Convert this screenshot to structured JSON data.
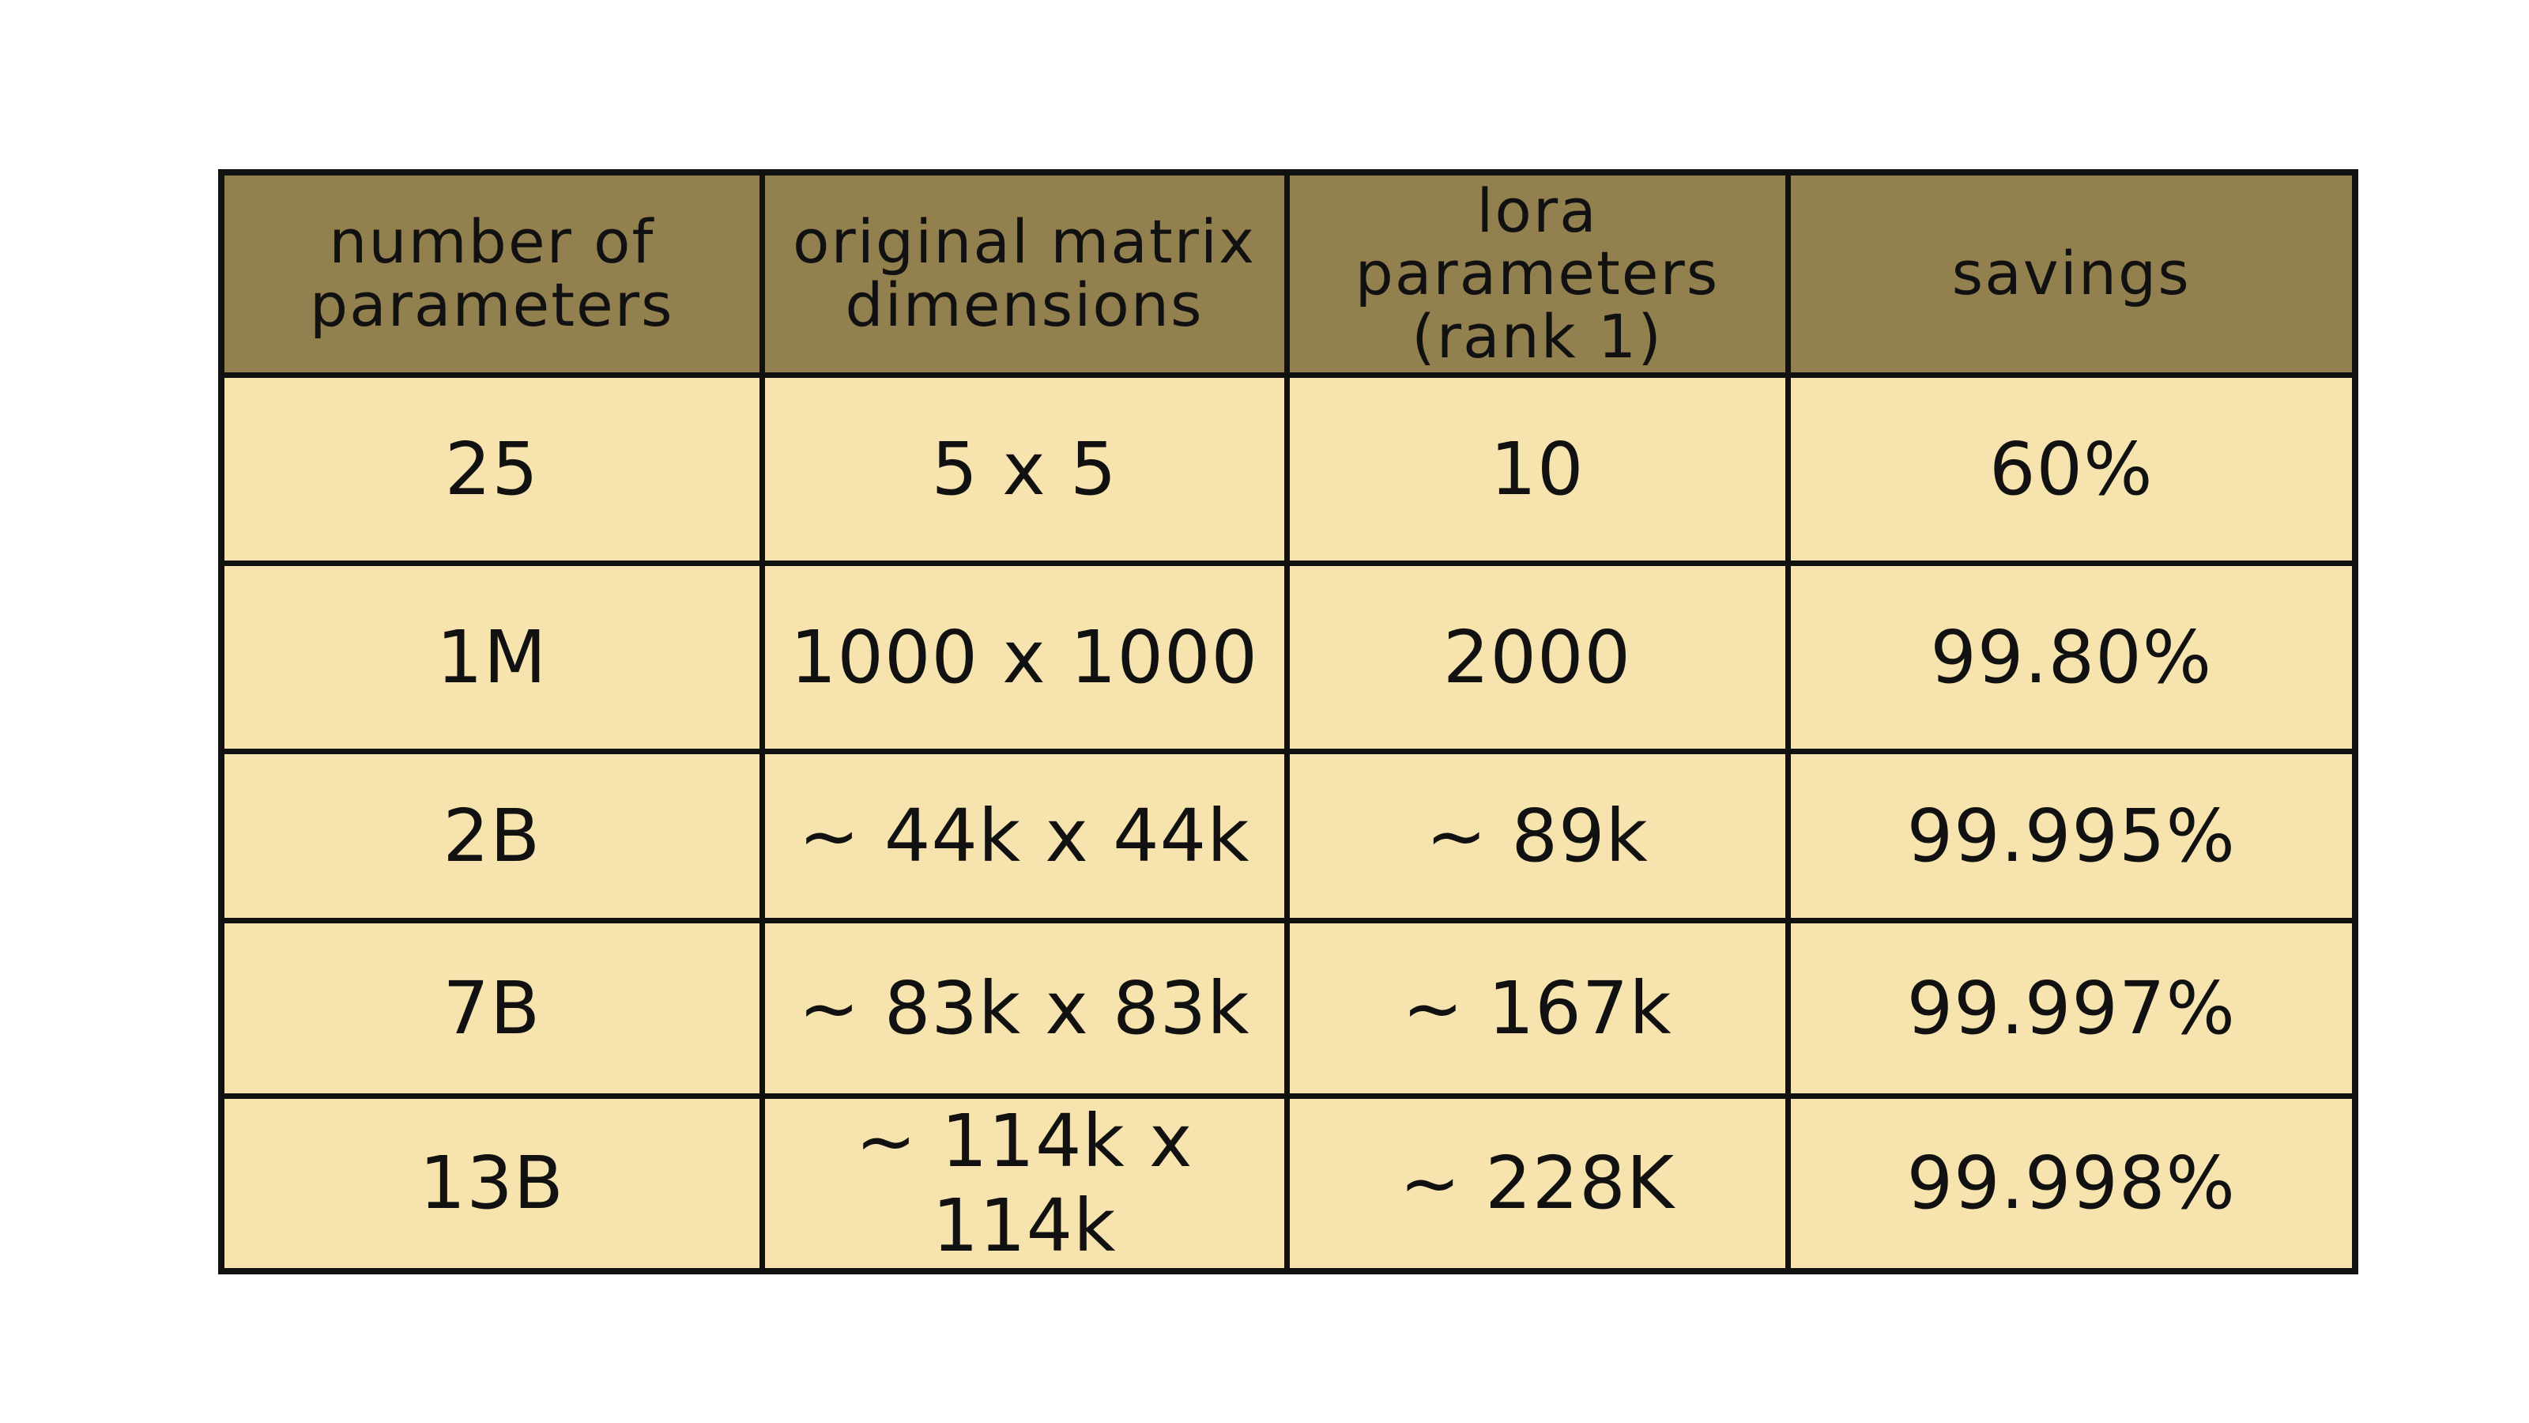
{
  "table": {
    "headers": [
      "number of parameters",
      "original matrix dimensions",
      "lora parameters (rank 1)",
      "savings"
    ],
    "rows": [
      [
        "25",
        "5 x 5",
        "10",
        "60%"
      ],
      [
        "1M",
        "1000 x 1000",
        "2000",
        "99.80%"
      ],
      [
        "2B",
        "~ 44k x 44k",
        "~ 89k",
        "99.995%"
      ],
      [
        "7B",
        "~ 83k x 83k",
        "~ 167k",
        "99.997%"
      ],
      [
        "13B",
        "~ 114k x 114k",
        "~ 228K",
        "99.998%"
      ]
    ],
    "colors": {
      "header_bg": "#93804f",
      "cell_bg": "#f6e3ad",
      "border": "#111111"
    }
  }
}
